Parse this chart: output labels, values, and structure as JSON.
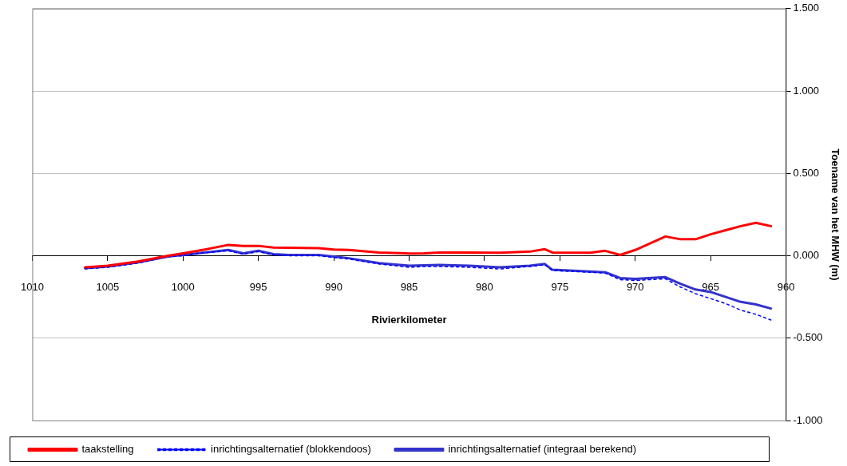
{
  "chart_data": {
    "type": "line",
    "xlabel": "Rivierkilometer",
    "ylabel": "Toename van het MHW (m)",
    "xlim": [
      1010,
      960
    ],
    "xticks": [
      1010,
      1005,
      1000,
      995,
      990,
      985,
      980,
      975,
      970,
      965,
      960
    ],
    "ylim": [
      -1,
      1.5
    ],
    "yticks": [
      {
        "value": -1,
        "label": "-1.000"
      },
      {
        "value": -0.5,
        "label": "-0.500"
      },
      {
        "value": 0,
        "label": "0.000"
      },
      {
        "value": 0.5,
        "label": "0.500"
      },
      {
        "value": 1,
        "label": "1.000"
      },
      {
        "value": 1.5,
        "label": "1.500"
      }
    ],
    "grid": "y",
    "legend": "bottom",
    "marker": "none",
    "x": [
      1006.5,
      1005,
      1003,
      1001,
      1000,
      999,
      997,
      996,
      995,
      994,
      993,
      991,
      990,
      989,
      987,
      985,
      984,
      983,
      981,
      979,
      977,
      976,
      975.5,
      973,
      972,
      971,
      970,
      968,
      967,
      966,
      965,
      964,
      963,
      962,
      961
    ],
    "series": [
      {
        "name": "taakstelling",
        "color": "#ff0000",
        "values": [
          -0.07,
          -0.06,
          -0.035,
          0,
          0.015,
          0.03,
          0.066,
          0.06,
          0.06,
          0.05,
          0.048,
          0.046,
          0.038,
          0.035,
          0.02,
          0.014,
          0.015,
          0.02,
          0.02,
          0.018,
          0.025,
          0.04,
          0.02,
          0.018,
          0.03,
          0.005,
          0.035,
          0.117,
          0.1,
          0.1,
          0.13,
          0.155,
          0.18,
          0.2,
          0.18
        ]
      },
      {
        "name": "inrichtingsalternatief (blokkendoos)",
        "color": "#0000ff",
        "line_style": "dotted",
        "values": [
          -0.08,
          -0.07,
          -0.045,
          -0.005,
          0.0,
          0.015,
          0.03,
          0.01,
          0.025,
          0.005,
          0.0,
          0.0,
          -0.01,
          -0.02,
          -0.05,
          -0.07,
          -0.065,
          -0.065,
          -0.07,
          -0.08,
          -0.065,
          -0.055,
          -0.09,
          -0.1,
          -0.105,
          -0.145,
          -0.15,
          -0.14,
          -0.19,
          -0.23,
          -0.26,
          -0.29,
          -0.33,
          -0.355,
          -0.39
        ]
      },
      {
        "name": "inrichtingsalternatief (integraal berekend)",
        "color": "#3333cc",
        "line_style": "solid",
        "values": [
          -0.075,
          -0.065,
          -0.04,
          -0.005,
          0.005,
          0.015,
          0.035,
          0.015,
          0.03,
          0.01,
          0.005,
          0.005,
          -0.005,
          -0.015,
          -0.045,
          -0.06,
          -0.058,
          -0.055,
          -0.06,
          -0.07,
          -0.06,
          -0.05,
          -0.085,
          -0.095,
          -0.1,
          -0.135,
          -0.14,
          -0.13,
          -0.17,
          -0.205,
          -0.22,
          -0.25,
          -0.28,
          -0.295,
          -0.32
        ]
      }
    ]
  }
}
